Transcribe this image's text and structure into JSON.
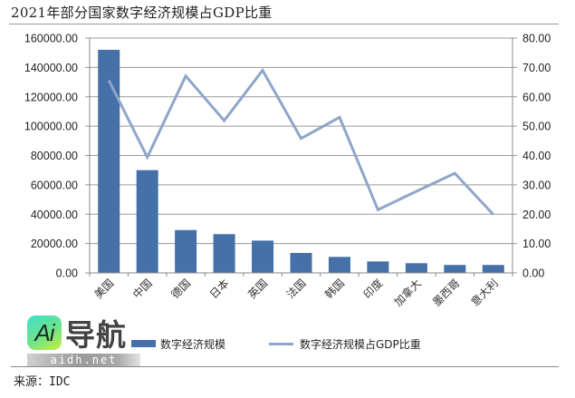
{
  "title": "2021年部分国家数字经济规模占GDP比重",
  "source": "来源：IDC",
  "watermark": {
    "logo_text": "Ai",
    "brand": "导航",
    "domain": "aidh.net"
  },
  "legend": {
    "bar_label": "数字经济规模",
    "line_label": "数字经济规模占GDP比重"
  },
  "colors": {
    "bar": "#4570a8",
    "line": "#8ea6c9",
    "grid": "#9a9a9a"
  },
  "chart_data": {
    "type": "bar+line",
    "title": "2021年部分国家数字经济规模占GDP比重",
    "categories": [
      "美国",
      "中国",
      "德国",
      "日本",
      "英国",
      "法国",
      "韩国",
      "印度",
      "加拿大",
      "墨西哥",
      "意大利"
    ],
    "series": [
      {
        "name": "数字经济规模",
        "type": "bar",
        "axis": "left",
        "values": [
          152000,
          70000,
          29200,
          26400,
          22000,
          13600,
          10900,
          7800,
          6600,
          5400,
          5400
        ]
      },
      {
        "name": "数字经济规模占GDP比重",
        "type": "line",
        "axis": "right",
        "values": [
          65.6,
          39.4,
          67.1,
          51.9,
          69.0,
          45.8,
          53.0,
          21.5,
          27.8,
          33.9,
          19.9
        ]
      }
    ],
    "y_left": {
      "ylim": [
        0,
        160000
      ],
      "ticks": [
        "0.00",
        "20000.00",
        "40000.00",
        "60000.00",
        "80000.00",
        "100000.00",
        "120000.00",
        "140000.00",
        "160000.00"
      ]
    },
    "y_right": {
      "ylim": [
        0,
        80
      ],
      "ticks": [
        "0.00",
        "10.00",
        "20.00",
        "30.00",
        "40.00",
        "50.00",
        "60.00",
        "70.00",
        "80.00"
      ]
    },
    "xlabel": "",
    "grid": true,
    "legend_position": "bottom"
  }
}
